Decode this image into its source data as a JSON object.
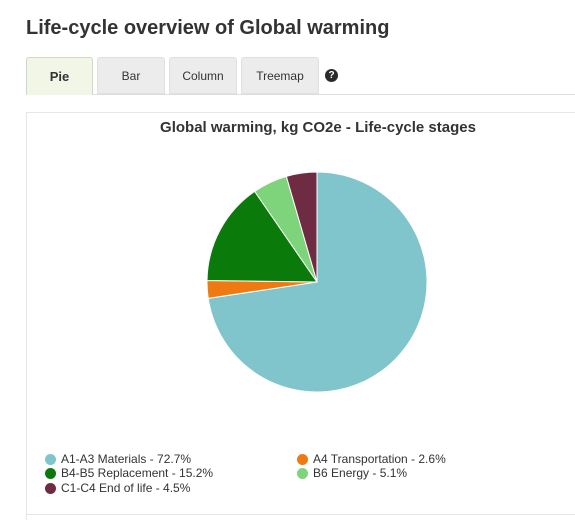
{
  "page": {
    "title": "Life-cycle overview of Global warming"
  },
  "tabs": [
    {
      "label": "Pie",
      "active": true
    },
    {
      "label": "Bar",
      "active": false
    },
    {
      "label": "Column",
      "active": false
    },
    {
      "label": "Treemap",
      "active": false
    }
  ],
  "help": {
    "icon": "help-icon",
    "glyph": "?"
  },
  "chart_data": {
    "type": "pie",
    "title": "Global warming, kg CO2e - Life-cycle stages",
    "slices": [
      {
        "label": "A1-A3 Materials",
        "value": 72.7,
        "legend": "A1-A3 Materials - 72.7%",
        "color": "#80c4cc"
      },
      {
        "label": "A4 Transportation",
        "value": 2.6,
        "legend": "A4 Transportation - 2.6%",
        "color": "#f07a12"
      },
      {
        "label": "B4-B5 Replacement",
        "value": 15.2,
        "legend": "B4-B5 Replacement - 15.2%",
        "color": "#0a7a0a"
      },
      {
        "label": "B6 Energy",
        "value": 5.1,
        "legend": "B6 Energy - 5.1%",
        "color": "#7ed47a"
      },
      {
        "label": "C1-C4 End of life",
        "value": 4.5,
        "legend": "C1-C4 End of life - 4.5%",
        "color": "#6e2b42"
      }
    ],
    "legend_placement": "bottom"
  }
}
